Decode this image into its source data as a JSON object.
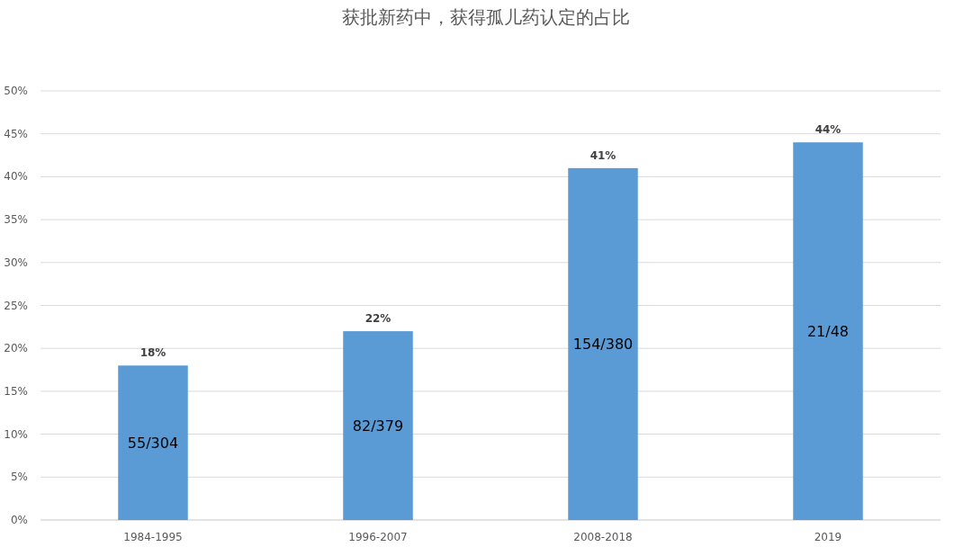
{
  "chart_data": {
    "type": "bar",
    "title": "获批新药中，获得孤儿药认定的占比",
    "categories": [
      "1984-1995",
      "1996-2007",
      "2008-2018",
      "2019"
    ],
    "values": [
      18,
      22,
      41,
      44
    ],
    "color": "#5b9bd5",
    "value_labels": [
      "18%",
      "22%",
      "41%",
      "44%"
    ],
    "annotations": [
      "55/304",
      "82/379",
      "154/380",
      "21/48"
    ],
    "ylim": [
      0,
      50
    ],
    "yticks": [
      {
        "value": 0,
        "label": "0%"
      },
      {
        "value": 5,
        "label": "5%"
      },
      {
        "value": 10,
        "label": "10%"
      },
      {
        "value": 15,
        "label": "15%"
      },
      {
        "value": 20,
        "label": "20%"
      },
      {
        "value": 25,
        "label": "25%"
      },
      {
        "value": 30,
        "label": "30%"
      },
      {
        "value": 35,
        "label": "35%"
      },
      {
        "value": 40,
        "label": "40%"
      },
      {
        "value": 45,
        "label": "45%"
      },
      {
        "value": 50,
        "label": "50%"
      }
    ],
    "grid": "y"
  }
}
